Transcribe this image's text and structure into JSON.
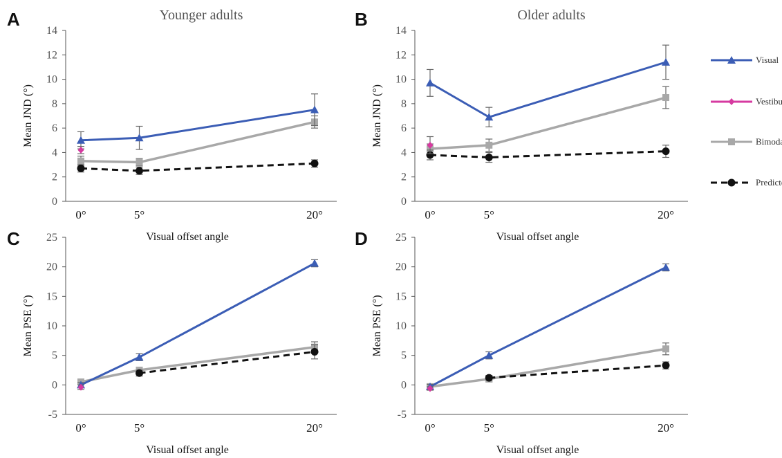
{
  "colors": {
    "visual": "#3b5db5",
    "vestibular": "#d63aa0",
    "bimodal": "#a8a8a8",
    "predicted": "#111111",
    "axis": "#555555"
  },
  "legend": [
    {
      "key": "visual",
      "label": "Visual",
      "marker": "triangle",
      "dashed": false
    },
    {
      "key": "vestibular",
      "label": "Vestibular",
      "marker": "diamond",
      "dashed": false
    },
    {
      "key": "bimodal",
      "label": "Bimodal",
      "marker": "square",
      "dashed": false
    },
    {
      "key": "predicted",
      "label": "Predicted",
      "marker": "circle",
      "dashed": true
    }
  ],
  "chart_data": [
    {
      "panel": "A",
      "type": "line",
      "title": "Younger adults",
      "xlabel": "Visual offset angle",
      "ylabel": "Mean JND (°)",
      "categories": [
        "0°",
        "5°",
        "20°"
      ],
      "x": [
        0,
        5,
        20
      ],
      "ylim": [
        0,
        14
      ],
      "yticks": [
        0,
        2,
        4,
        6,
        8,
        10,
        12,
        14
      ],
      "series": [
        {
          "name": "Visual",
          "key": "visual",
          "values": [
            5.0,
            5.2,
            7.5
          ],
          "err": [
            0.7,
            0.95,
            1.3
          ]
        },
        {
          "name": "Vestibular",
          "key": "vestibular",
          "values": [
            4.2,
            null,
            null
          ],
          "err": [
            0.3,
            null,
            null
          ]
        },
        {
          "name": "Bimodal",
          "key": "bimodal",
          "values": [
            3.3,
            3.2,
            6.5
          ],
          "err": [
            0.4,
            0.3,
            0.5
          ]
        },
        {
          "name": "Predicted",
          "key": "predicted",
          "values": [
            2.7,
            2.5,
            3.1
          ],
          "err": [
            0.3,
            0.3,
            0.3
          ]
        }
      ]
    },
    {
      "panel": "B",
      "type": "line",
      "title": "Older adults",
      "xlabel": "Visual offset angle",
      "ylabel": "Mean JND (°)",
      "categories": [
        "0°",
        "5°",
        "20°"
      ],
      "x": [
        0,
        5,
        20
      ],
      "ylim": [
        0,
        14
      ],
      "yticks": [
        0,
        2,
        4,
        6,
        8,
        10,
        12,
        14
      ],
      "series": [
        {
          "name": "Visual",
          "key": "visual",
          "values": [
            9.7,
            6.9,
            11.4
          ],
          "err": [
            1.1,
            0.8,
            1.4
          ]
        },
        {
          "name": "Vestibular",
          "key": "vestibular",
          "values": [
            4.6,
            null,
            null
          ],
          "err": [
            0.7,
            null,
            null
          ]
        },
        {
          "name": "Bimodal",
          "key": "bimodal",
          "values": [
            4.3,
            4.6,
            8.5
          ],
          "err": [
            0.4,
            0.5,
            0.9
          ]
        },
        {
          "name": "Predicted",
          "key": "predicted",
          "values": [
            3.8,
            3.6,
            4.1
          ],
          "err": [
            0.4,
            0.4,
            0.5
          ]
        }
      ]
    },
    {
      "panel": "C",
      "type": "line",
      "title": "",
      "xlabel": "Visual offset angle",
      "ylabel": "Mean PSE (°)",
      "categories": [
        "0°",
        "5°",
        "20°"
      ],
      "x": [
        0,
        5,
        20
      ],
      "ylim": [
        -5,
        25
      ],
      "yticks": [
        -5,
        0,
        5,
        10,
        15,
        20,
        25
      ],
      "series": [
        {
          "name": "Visual",
          "key": "visual",
          "values": [
            0.0,
            4.7,
            20.6
          ],
          "err": [
            0.4,
            0.6,
            0.6
          ]
        },
        {
          "name": "Vestibular",
          "key": "vestibular",
          "values": [
            -0.4,
            null,
            null
          ],
          "err": [
            0.4,
            null,
            null
          ]
        },
        {
          "name": "Bimodal",
          "key": "bimodal",
          "values": [
            0.5,
            2.5,
            6.4
          ],
          "err": [
            0.3,
            0.4,
            0.9
          ]
        },
        {
          "name": "Predicted",
          "key": "predicted",
          "values": [
            null,
            2.0,
            5.6
          ],
          "err": [
            null,
            0.5,
            1.2
          ]
        }
      ]
    },
    {
      "panel": "D",
      "type": "line",
      "title": "",
      "xlabel": "Visual offset angle",
      "ylabel": "Mean PSE (°)",
      "categories": [
        "0°",
        "5°",
        "20°"
      ],
      "x": [
        0,
        5,
        20
      ],
      "ylim": [
        -5,
        25
      ],
      "yticks": [
        -5,
        0,
        5,
        10,
        15,
        20,
        25
      ],
      "series": [
        {
          "name": "Visual",
          "key": "visual",
          "values": [
            -0.3,
            5.0,
            19.9
          ],
          "err": [
            0.4,
            0.6,
            0.6
          ]
        },
        {
          "name": "Vestibular",
          "key": "vestibular",
          "values": [
            -0.6,
            null,
            null
          ],
          "err": [
            0.3,
            null,
            null
          ]
        },
        {
          "name": "Bimodal",
          "key": "bimodal",
          "values": [
            -0.3,
            1.0,
            6.1
          ],
          "err": [
            0.5,
            0.5,
            1.0
          ]
        },
        {
          "name": "Predicted",
          "key": "predicted",
          "values": [
            null,
            1.2,
            3.3
          ],
          "err": [
            null,
            0.4,
            0.6
          ]
        }
      ]
    }
  ]
}
